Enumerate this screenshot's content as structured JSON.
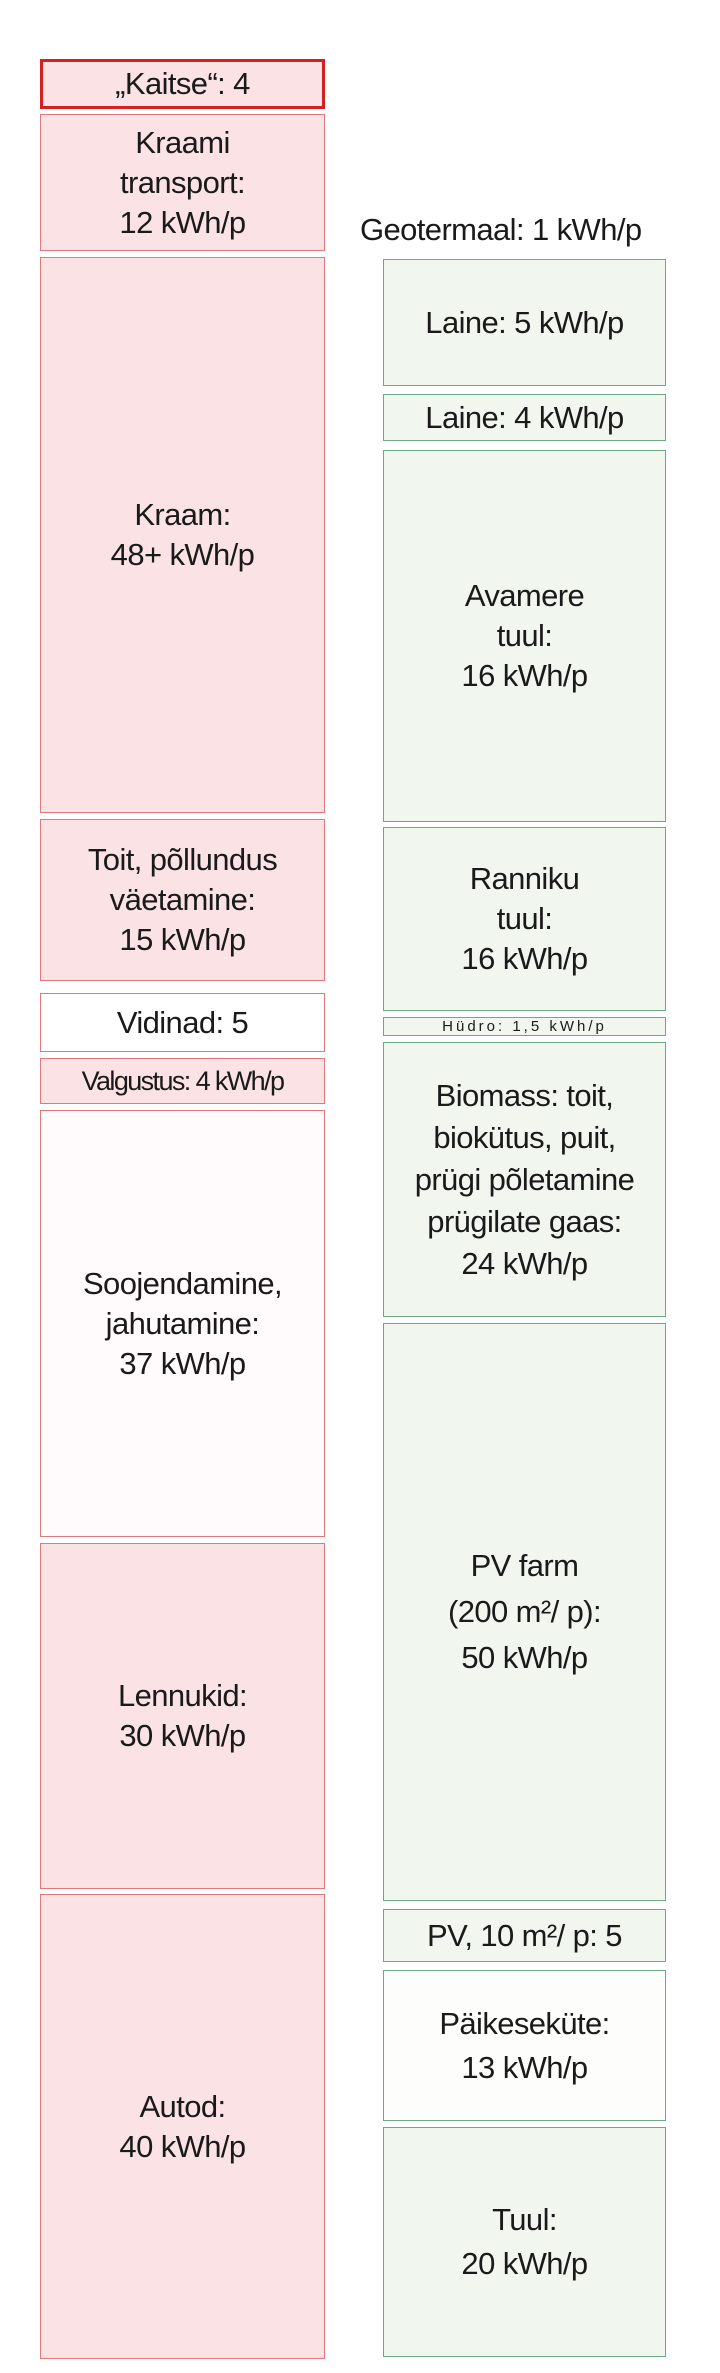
{
  "consumption": {
    "color_fill": "#fbe3e5",
    "color_border": "#e0787e",
    "highlight_border": "#d42020",
    "items": [
      {
        "label": "„Kaitse“: 4"
      },
      {
        "label": "Kraami\ntransport:\n12 kWh/p"
      },
      {
        "label": "Kraam:\n48+ kWh/p"
      },
      {
        "label": "Toit, põllundus\nväetamine:\n15 kWh/p"
      },
      {
        "label": "Vidinad: 5"
      },
      {
        "label": "Valgustus: 4 kWh/p"
      },
      {
        "label": "Soojendamine,\njahutamine:\n37 kWh/p"
      },
      {
        "label": "Lennukid:\n30 kWh/p"
      },
      {
        "label": "Autod:\n40 kWh/p"
      }
    ]
  },
  "production": {
    "color_fill": "#f1f6ef",
    "color_border": "#6aaa85",
    "geothermal_label": "Geotermaal: 1 kWh/p",
    "items": [
      {
        "label": "Laine: 5 kWh/p"
      },
      {
        "label": "Laine: 4 kWh/p"
      },
      {
        "label": "Avamere\ntuul:\n16 kWh/p"
      },
      {
        "label": "Ranniku\ntuul:\n16 kWh/p"
      },
      {
        "label": "Hüdro: 1,5 kWh/p"
      },
      {
        "label": "Biomass: toit,\nbiokütus, puit,\nprügi põletamine\nprügilate gaas:\n24 kWh/p"
      },
      {
        "label": "PV farm\n(200 m²/ p):\n50 kWh/p"
      },
      {
        "label": "PV, 10 m²/ p: 5"
      },
      {
        "label": "Päikeseküte:\n13 kWh/p"
      },
      {
        "label": "Tuul:\n20 kWh/p"
      }
    ]
  }
}
